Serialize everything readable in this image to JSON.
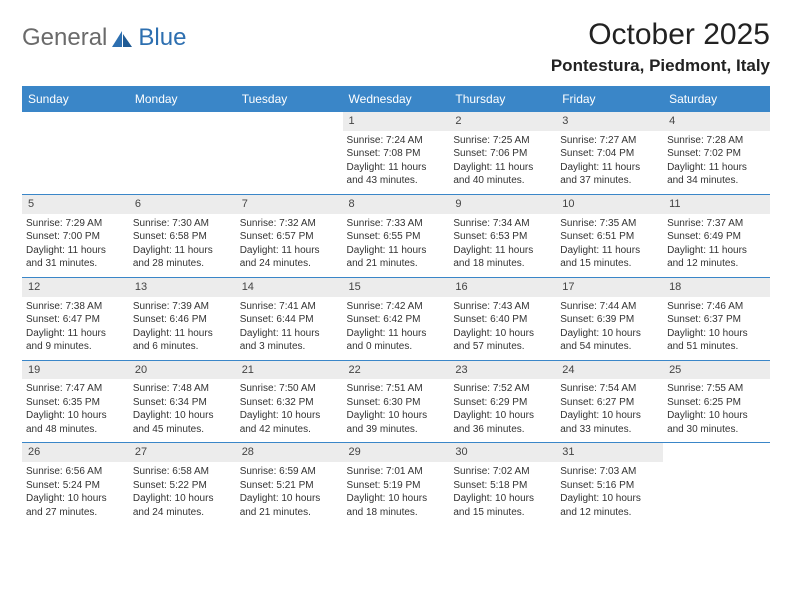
{
  "colors": {
    "header": "#3a86c8",
    "day_bg": "#ececec",
    "bg": "#ffffff"
  },
  "logo": {
    "text1": "General",
    "text2": "Blue"
  },
  "title": "October 2025",
  "location": "Pontestura, Piedmont, Italy",
  "weekdays": [
    "Sunday",
    "Monday",
    "Tuesday",
    "Wednesday",
    "Thursday",
    "Friday",
    "Saturday"
  ],
  "labels": {
    "sunrise": "Sunrise:",
    "sunset": "Sunset:",
    "daylight_prefix": "Daylight:"
  },
  "first_weekday_index": 3,
  "days": [
    {
      "n": 1,
      "sunrise": "7:24 AM",
      "sunset": "7:08 PM",
      "daylight": "11 hours and 43 minutes."
    },
    {
      "n": 2,
      "sunrise": "7:25 AM",
      "sunset": "7:06 PM",
      "daylight": "11 hours and 40 minutes."
    },
    {
      "n": 3,
      "sunrise": "7:27 AM",
      "sunset": "7:04 PM",
      "daylight": "11 hours and 37 minutes."
    },
    {
      "n": 4,
      "sunrise": "7:28 AM",
      "sunset": "7:02 PM",
      "daylight": "11 hours and 34 minutes."
    },
    {
      "n": 5,
      "sunrise": "7:29 AM",
      "sunset": "7:00 PM",
      "daylight": "11 hours and 31 minutes."
    },
    {
      "n": 6,
      "sunrise": "7:30 AM",
      "sunset": "6:58 PM",
      "daylight": "11 hours and 28 minutes."
    },
    {
      "n": 7,
      "sunrise": "7:32 AM",
      "sunset": "6:57 PM",
      "daylight": "11 hours and 24 minutes."
    },
    {
      "n": 8,
      "sunrise": "7:33 AM",
      "sunset": "6:55 PM",
      "daylight": "11 hours and 21 minutes."
    },
    {
      "n": 9,
      "sunrise": "7:34 AM",
      "sunset": "6:53 PM",
      "daylight": "11 hours and 18 minutes."
    },
    {
      "n": 10,
      "sunrise": "7:35 AM",
      "sunset": "6:51 PM",
      "daylight": "11 hours and 15 minutes."
    },
    {
      "n": 11,
      "sunrise": "7:37 AM",
      "sunset": "6:49 PM",
      "daylight": "11 hours and 12 minutes."
    },
    {
      "n": 12,
      "sunrise": "7:38 AM",
      "sunset": "6:47 PM",
      "daylight": "11 hours and 9 minutes."
    },
    {
      "n": 13,
      "sunrise": "7:39 AM",
      "sunset": "6:46 PM",
      "daylight": "11 hours and 6 minutes."
    },
    {
      "n": 14,
      "sunrise": "7:41 AM",
      "sunset": "6:44 PM",
      "daylight": "11 hours and 3 minutes."
    },
    {
      "n": 15,
      "sunrise": "7:42 AM",
      "sunset": "6:42 PM",
      "daylight": "11 hours and 0 minutes."
    },
    {
      "n": 16,
      "sunrise": "7:43 AM",
      "sunset": "6:40 PM",
      "daylight": "10 hours and 57 minutes."
    },
    {
      "n": 17,
      "sunrise": "7:44 AM",
      "sunset": "6:39 PM",
      "daylight": "10 hours and 54 minutes."
    },
    {
      "n": 18,
      "sunrise": "7:46 AM",
      "sunset": "6:37 PM",
      "daylight": "10 hours and 51 minutes."
    },
    {
      "n": 19,
      "sunrise": "7:47 AM",
      "sunset": "6:35 PM",
      "daylight": "10 hours and 48 minutes."
    },
    {
      "n": 20,
      "sunrise": "7:48 AM",
      "sunset": "6:34 PM",
      "daylight": "10 hours and 45 minutes."
    },
    {
      "n": 21,
      "sunrise": "7:50 AM",
      "sunset": "6:32 PM",
      "daylight": "10 hours and 42 minutes."
    },
    {
      "n": 22,
      "sunrise": "7:51 AM",
      "sunset": "6:30 PM",
      "daylight": "10 hours and 39 minutes."
    },
    {
      "n": 23,
      "sunrise": "7:52 AM",
      "sunset": "6:29 PM",
      "daylight": "10 hours and 36 minutes."
    },
    {
      "n": 24,
      "sunrise": "7:54 AM",
      "sunset": "6:27 PM",
      "daylight": "10 hours and 33 minutes."
    },
    {
      "n": 25,
      "sunrise": "7:55 AM",
      "sunset": "6:25 PM",
      "daylight": "10 hours and 30 minutes."
    },
    {
      "n": 26,
      "sunrise": "6:56 AM",
      "sunset": "5:24 PM",
      "daylight": "10 hours and 27 minutes."
    },
    {
      "n": 27,
      "sunrise": "6:58 AM",
      "sunset": "5:22 PM",
      "daylight": "10 hours and 24 minutes."
    },
    {
      "n": 28,
      "sunrise": "6:59 AM",
      "sunset": "5:21 PM",
      "daylight": "10 hours and 21 minutes."
    },
    {
      "n": 29,
      "sunrise": "7:01 AM",
      "sunset": "5:19 PM",
      "daylight": "10 hours and 18 minutes."
    },
    {
      "n": 30,
      "sunrise": "7:02 AM",
      "sunset": "5:18 PM",
      "daylight": "10 hours and 15 minutes."
    },
    {
      "n": 31,
      "sunrise": "7:03 AM",
      "sunset": "5:16 PM",
      "daylight": "10 hours and 12 minutes."
    }
  ]
}
